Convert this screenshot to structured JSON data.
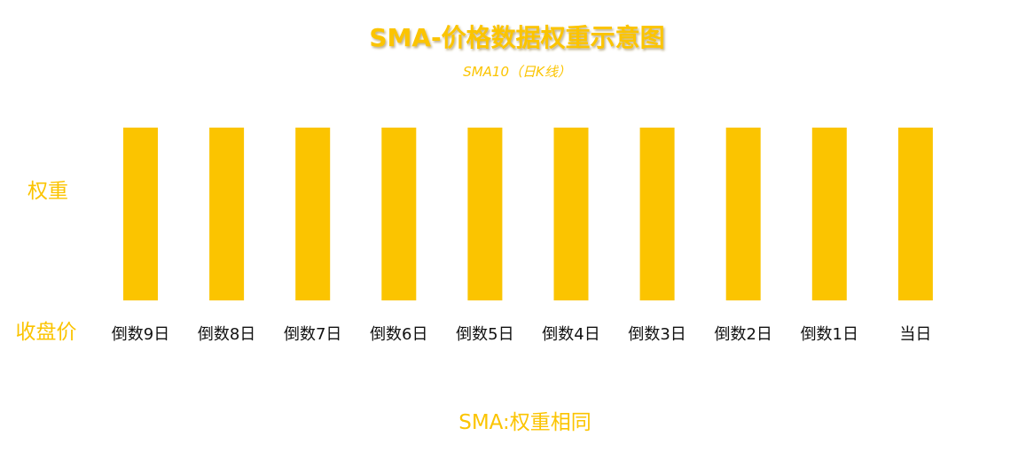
{
  "colors": {
    "accent": "#FBC400",
    "title_shadow": "#B89A40",
    "label_text": "#111111",
    "background": "#FFFFFF"
  },
  "chart_data": {
    "type": "bar",
    "title": "SMA-价格数据权重示意图",
    "subtitle": "SMA10（日K线）",
    "ylabel": "权重",
    "xlabel": "收盘价",
    "categories": [
      "倒数9日",
      "倒数8日",
      "倒数7日",
      "倒数6日",
      "倒数5日",
      "倒数4日",
      "倒数3日",
      "倒数2日",
      "倒数1日",
      "当日"
    ],
    "values": [
      1,
      1,
      1,
      1,
      1,
      1,
      1,
      1,
      1,
      1
    ],
    "ylim": [
      0,
      1
    ],
    "grid": false,
    "annotation": "SMA:权重相同"
  }
}
